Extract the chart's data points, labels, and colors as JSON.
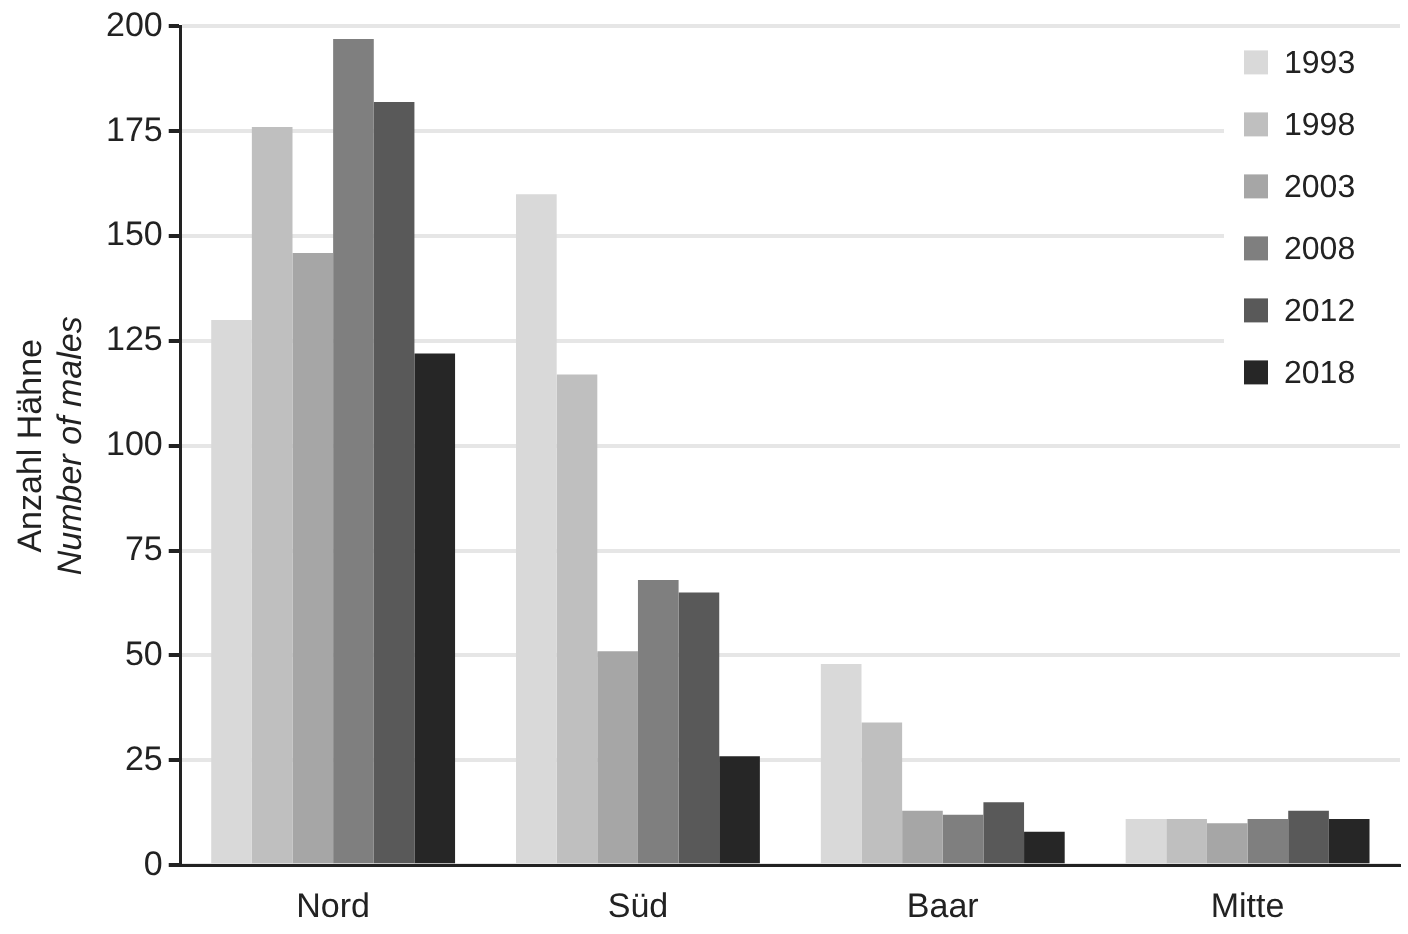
{
  "chart_data": {
    "type": "bar",
    "ylabel": "Anzahl Hähne\nNumber of males",
    "categories": [
      "Nord",
      "Süd",
      "Baar",
      "Mitte"
    ],
    "series": [
      {
        "name": "1993",
        "color": "#d9d9d9",
        "values": [
          130,
          160,
          48,
          11
        ]
      },
      {
        "name": "1998",
        "color": "#bfbfbf",
        "values": [
          176,
          117,
          34,
          11
        ]
      },
      {
        "name": "2003",
        "color": "#a6a6a6",
        "values": [
          146,
          51,
          13,
          10
        ]
      },
      {
        "name": "2008",
        "color": "#7f7f7f",
        "values": [
          197,
          68,
          12,
          11
        ]
      },
      {
        "name": "2012",
        "color": "#595959",
        "values": [
          182,
          65,
          15,
          13
        ]
      },
      {
        "name": "2018",
        "color": "#262626",
        "values": [
          122,
          26,
          8,
          11
        ]
      }
    ],
    "ylim": [
      0,
      200
    ],
    "yticks": [
      0,
      25,
      50,
      75,
      100,
      125,
      150,
      175,
      200
    ],
    "grid": "y",
    "legend": "top right"
  }
}
